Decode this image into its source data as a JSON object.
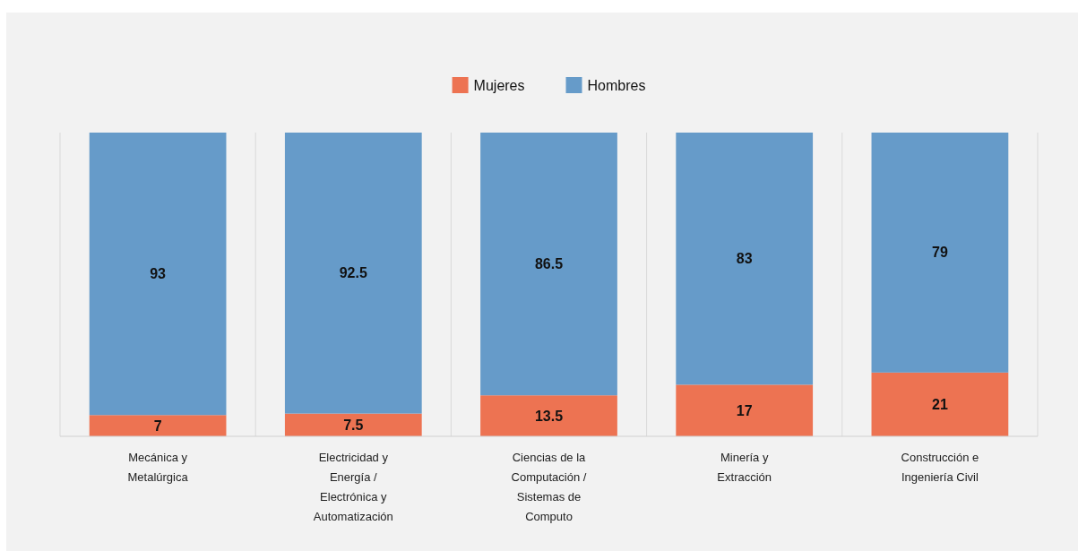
{
  "chart_data": {
    "type": "bar",
    "stacked": true,
    "categories": [
      "Mecánica y Metalúrgica",
      "Electricidad y Energía / Electrónica y Automatización",
      "Ciencias de la Computación / Sistemas de Computo",
      "Minería y Extracción",
      "Construcción e Ingeniería Civil"
    ],
    "series": [
      {
        "name": "Mujeres",
        "color": "#ed7352",
        "values": [
          7,
          7.5,
          13.5,
          17,
          21
        ]
      },
      {
        "name": "Hombres",
        "color": "#669bc9",
        "values": [
          93,
          92.5,
          86.5,
          83,
          79
        ]
      }
    ],
    "ylim": [
      0,
      100
    ],
    "tick_labels": "x",
    "grid": "x",
    "legend": "top",
    "data_labels": true
  }
}
